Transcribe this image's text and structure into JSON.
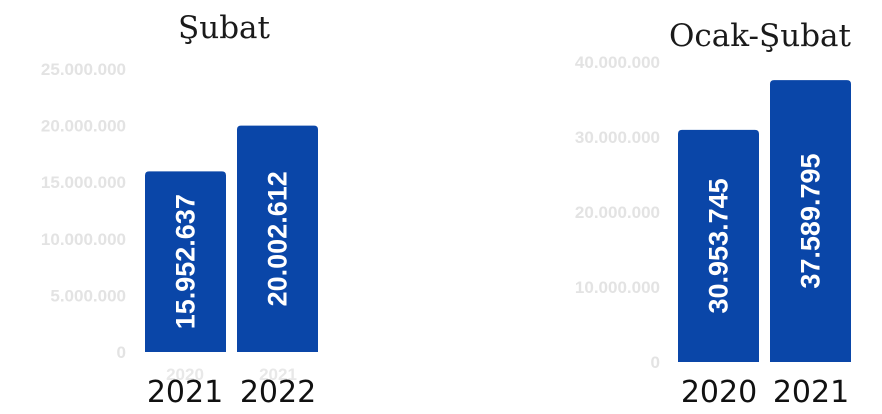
{
  "chart_data": [
    {
      "type": "bar",
      "title": "Şubat",
      "categories": [
        "2021",
        "2022"
      ],
      "background_categories": [
        "2020",
        "2021"
      ],
      "values": [
        15952637,
        20002612
      ],
      "value_labels": [
        "15.952.637",
        "20.002.612"
      ],
      "yticks": [
        0,
        5000000,
        10000000,
        15000000,
        20000000,
        25000000
      ],
      "ytick_labels": [
        "0",
        "5.000.000",
        "10.000.000",
        "15.000.000",
        "20.000.000",
        "25.000.000"
      ],
      "ylim": [
        0,
        25000000
      ],
      "bar_color": "#0a46a8",
      "grid": false
    },
    {
      "type": "bar",
      "title": "Ocak-Şubat",
      "categories": [
        "2020",
        "2021"
      ],
      "values": [
        30953745,
        37589795
      ],
      "value_labels": [
        "30.953.745",
        "37.589.795"
      ],
      "yticks": [
        0,
        10000000,
        20000000,
        30000000,
        40000000
      ],
      "ytick_labels": [
        "0",
        "10.000.000",
        "20.000.000",
        "30.000.000",
        "40.000.000"
      ],
      "ylim": [
        0,
        40000000
      ],
      "bar_color": "#0a46a8",
      "grid": false
    }
  ]
}
